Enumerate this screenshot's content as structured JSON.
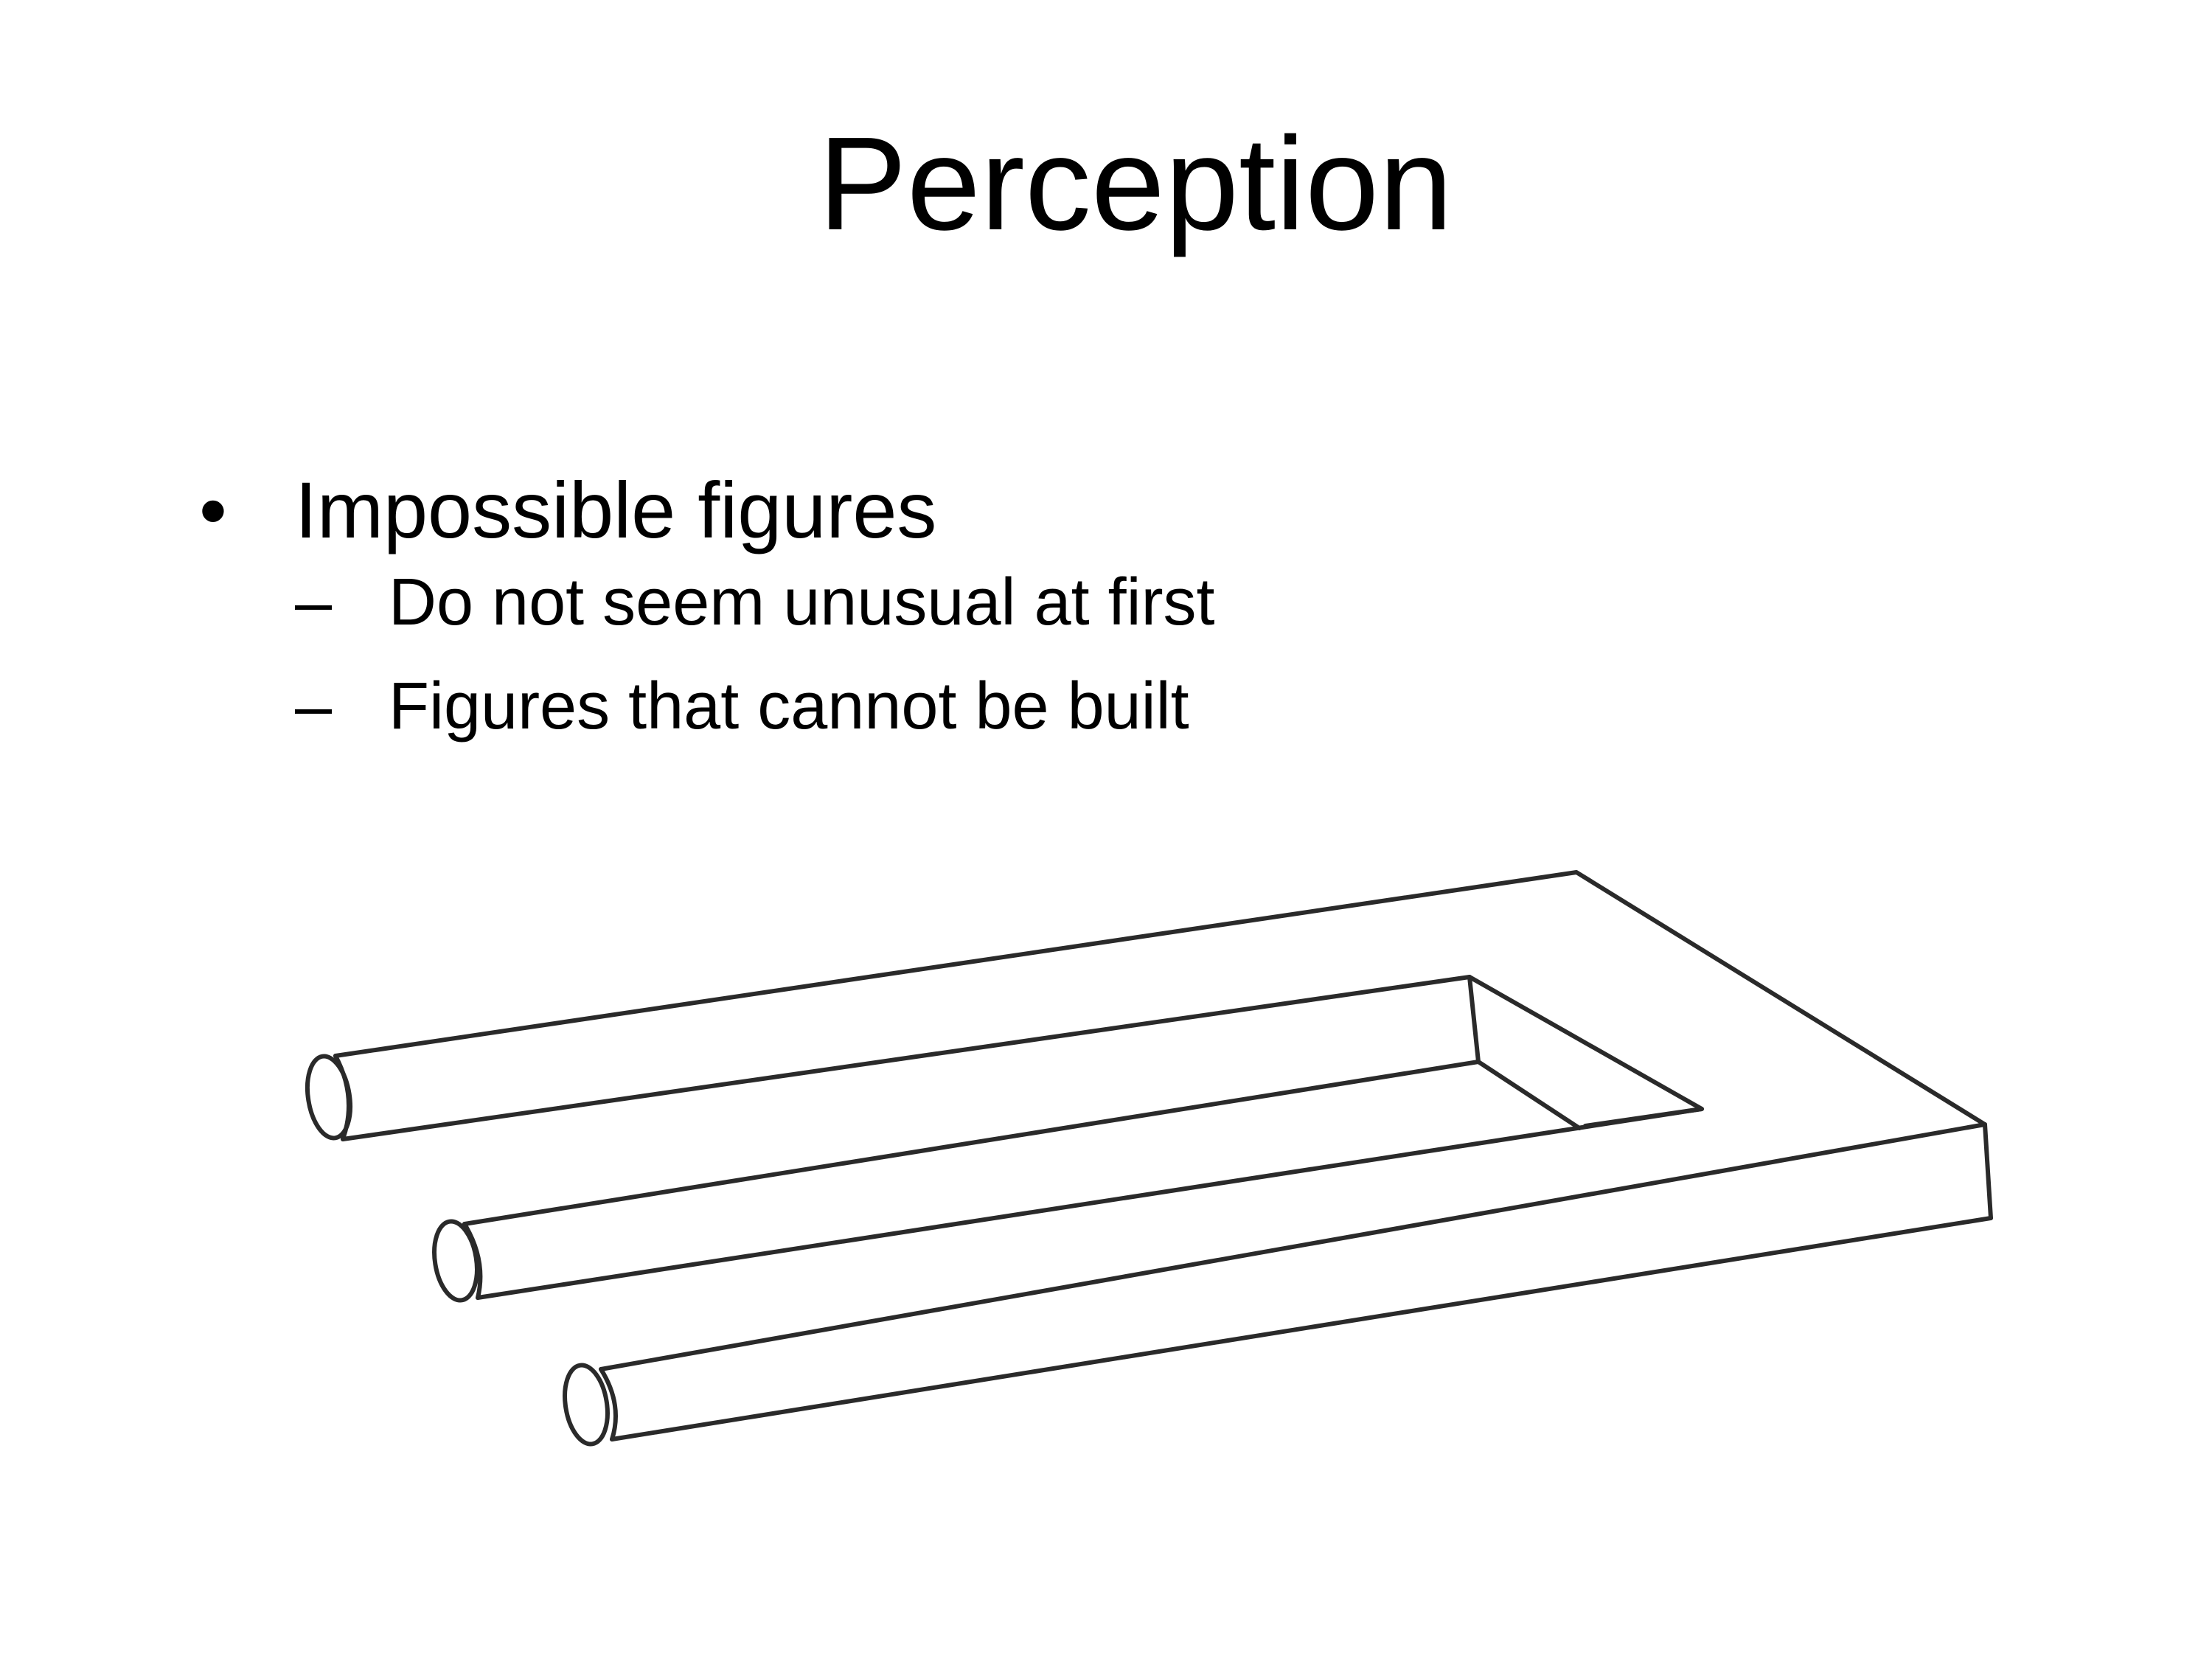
{
  "slide": {
    "title": "Perception",
    "bullets": [
      {
        "marker": "•",
        "text": "Impossible figures",
        "sub": [
          {
            "marker": "–",
            "text": "Do not seem unusual at first"
          },
          {
            "marker": "–",
            "text": "Figures that cannot be built"
          }
        ]
      }
    ]
  },
  "figure": {
    "subject": "impossible-trident-drawing",
    "stroke_color": "#2a2a2a"
  }
}
